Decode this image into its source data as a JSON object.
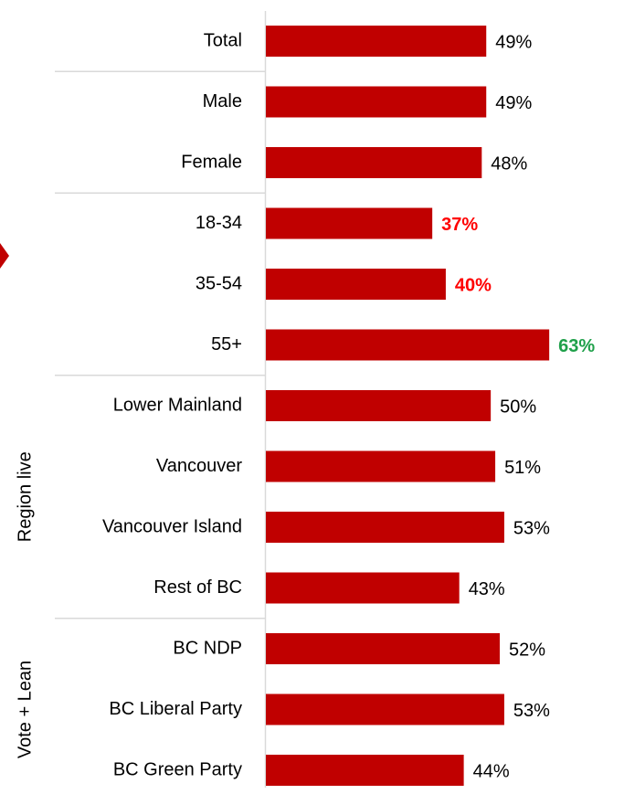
{
  "chart_data": {
    "type": "barh",
    "categories": [
      "Total",
      "Male",
      "Female",
      "18-34",
      "35-54",
      "55+",
      "Lower Mainland",
      "Vancouver",
      "Vancouver Island",
      "Rest of BC",
      "BC NDP",
      "BC Liberal Party",
      "BC Green Party"
    ],
    "values": [
      49,
      49,
      48,
      37,
      40,
      63,
      50,
      51,
      53,
      43,
      52,
      53,
      44
    ],
    "value_labels": [
      "49%",
      "49%",
      "48%",
      "37%",
      "40%",
      "63%",
      "50%",
      "51%",
      "53%",
      "43%",
      "52%",
      "53%",
      "44%"
    ],
    "value_label_colors": [
      "#000000",
      "#000000",
      "#000000",
      "#ff0000",
      "#ff0000",
      "#1fa04a",
      "#000000",
      "#000000",
      "#000000",
      "#000000",
      "#000000",
      "#000000",
      "#000000"
    ],
    "value_label_bold": [
      false,
      false,
      false,
      true,
      true,
      true,
      false,
      false,
      false,
      false,
      false,
      false,
      false
    ],
    "color": "#c00000",
    "xlim": [
      0,
      78
    ],
    "separators_before": [
      1,
      3,
      6,
      10
    ],
    "groups": [
      {
        "label": "Region live",
        "categories": [
          6,
          9
        ]
      },
      {
        "label": "Vote + Lean",
        "categories": [
          10,
          12
        ]
      }
    ]
  }
}
